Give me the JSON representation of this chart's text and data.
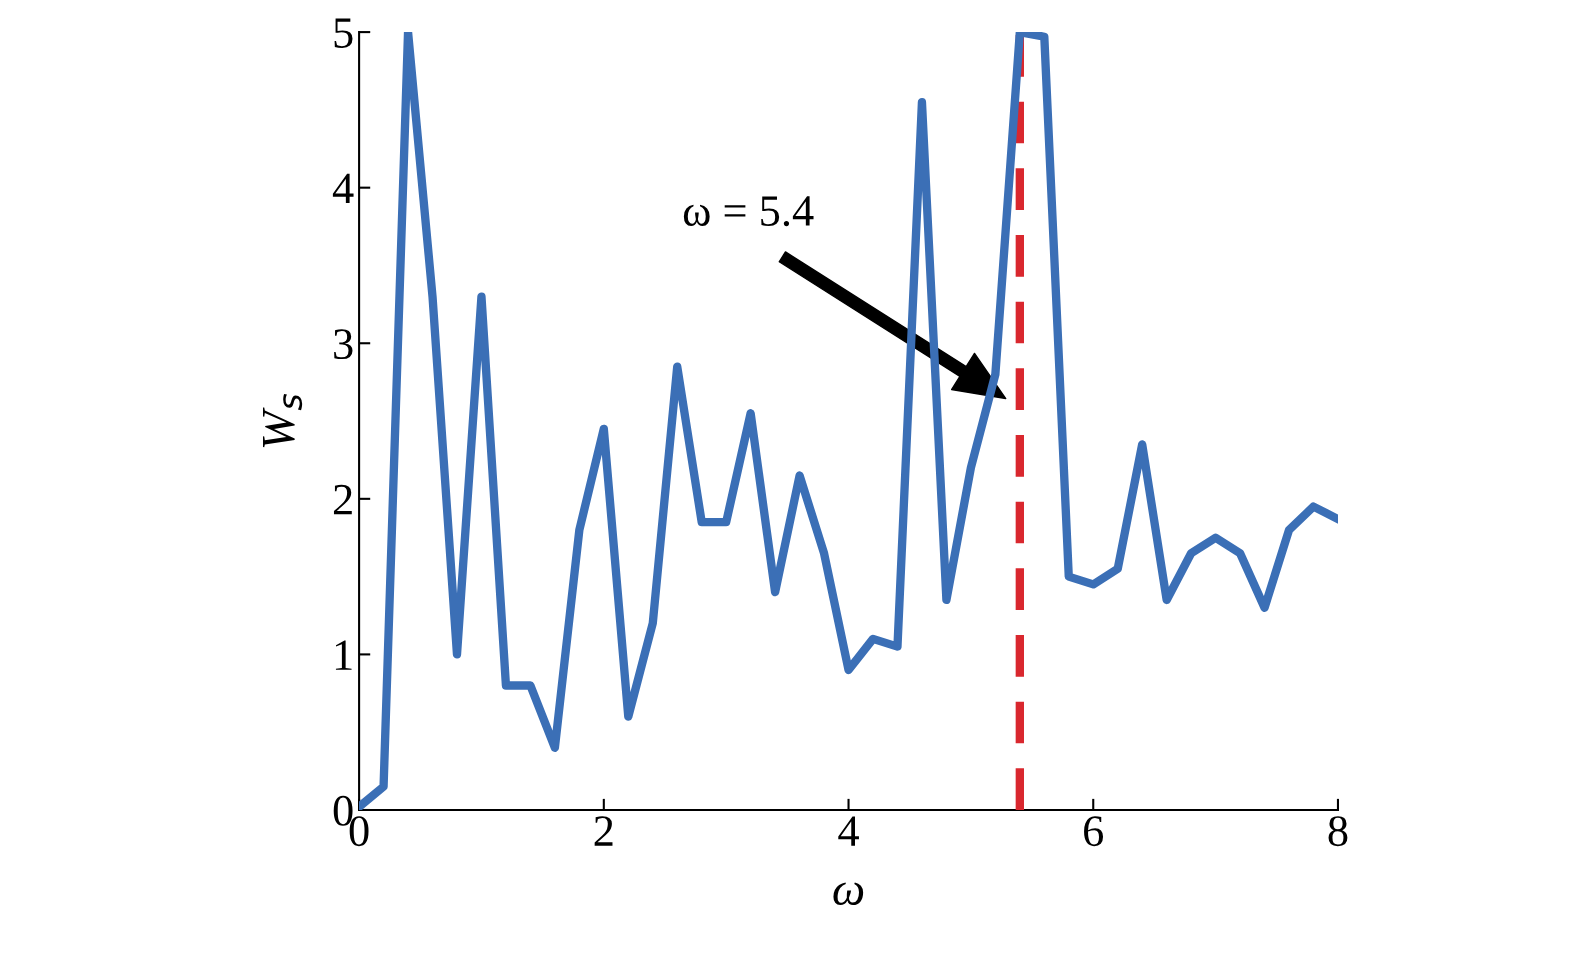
{
  "chart_data": {
    "type": "line",
    "x": [
      0,
      0.2,
      0.4,
      0.6,
      0.8,
      1.0,
      1.2,
      1.4,
      1.6,
      1.8,
      2.0,
      2.2,
      2.4,
      2.6,
      2.8,
      3.0,
      3.2,
      3.4,
      3.6,
      3.8,
      4.0,
      4.2,
      4.4,
      4.6,
      4.8,
      5.0,
      5.2,
      5.4,
      5.6,
      5.8,
      6.0,
      6.2,
      6.4,
      6.6,
      6.8,
      7.0,
      7.2,
      7.4,
      7.6,
      7.8,
      8.0
    ],
    "series": [
      {
        "color": "#3b6fb6",
        "values": [
          0.02,
          0.15,
          5.0,
          3.3,
          1.0,
          3.3,
          0.8,
          0.8,
          0.4,
          1.8,
          2.45,
          0.6,
          1.2,
          2.85,
          1.85,
          1.85,
          2.55,
          1.4,
          2.15,
          1.65,
          0.9,
          1.1,
          1.05,
          4.55,
          1.35,
          2.2,
          2.8,
          5.0,
          4.97,
          1.5,
          1.45,
          1.55,
          2.35,
          1.35,
          1.65,
          1.75,
          1.65,
          1.3,
          1.8,
          1.95,
          1.87
        ]
      }
    ],
    "xlabel": "ω",
    "ylabel": "W$_{s}$",
    "xlim": [
      0,
      8
    ],
    "ylim": [
      0,
      5
    ],
    "xticks": [
      0,
      2,
      4,
      6,
      8
    ],
    "yticks": [
      0,
      1,
      2,
      3,
      4,
      5
    ],
    "ref_lines": [
      {
        "axis": "x",
        "value": 5.4,
        "color": "#d9272e",
        "line_style": "dashed"
      }
    ],
    "annotations": [
      "ω = 5.4"
    ],
    "grid": false,
    "legend": false,
    "marker": "none",
    "line_style": "solid"
  }
}
